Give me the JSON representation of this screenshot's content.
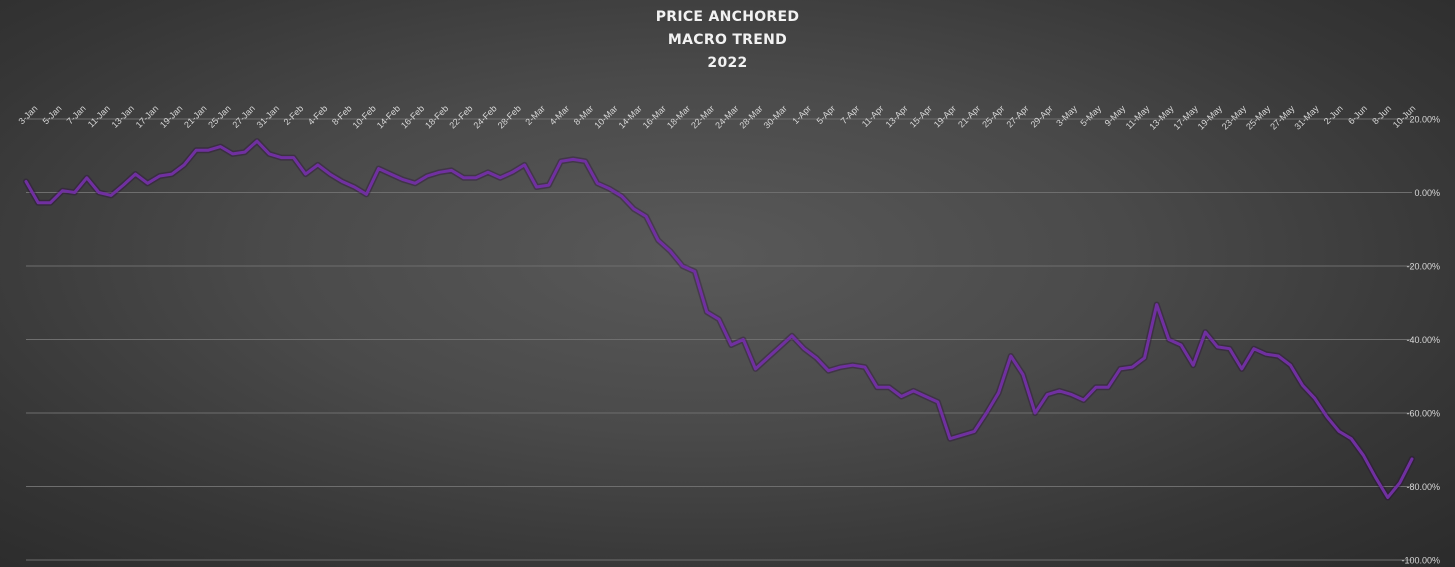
{
  "chart_data": {
    "type": "line",
    "title": [
      "PRICE ANCHORED",
      "MACRO TREND",
      "2022"
    ],
    "xlabel": "",
    "ylabel": "",
    "ylim": [
      -100,
      20
    ],
    "yticks": [
      20,
      0,
      -20,
      -40,
      -60,
      -80,
      -100
    ],
    "ytick_labels": [
      "20.00%",
      "0.00%",
      "-20.00%",
      "-40.00%",
      "-60.00%",
      "-80.00%",
      "-100.00%"
    ],
    "x_tick_labels": [
      "3-Jan",
      "5-Jan",
      "7-Jan",
      "11-Jan",
      "13-Jan",
      "17-Jan",
      "19-Jan",
      "21-Jan",
      "25-Jan",
      "27-Jan",
      "31-Jan",
      "2-Feb",
      "4-Feb",
      "8-Feb",
      "10-Feb",
      "14-Feb",
      "16-Feb",
      "18-Feb",
      "22-Feb",
      "24-Feb",
      "28-Feb",
      "2-Mar",
      "4-Mar",
      "8-Mar",
      "10-Mar",
      "14-Mar",
      "16-Mar",
      "18-Mar",
      "22-Mar",
      "24-Mar",
      "28-Mar",
      "30-Mar",
      "1-Apr",
      "5-Apr",
      "7-Apr",
      "11-Apr",
      "13-Apr",
      "15-Apr",
      "19-Apr",
      "21-Apr",
      "25-Apr",
      "27-Apr",
      "29-Apr",
      "3-May",
      "5-May",
      "9-May",
      "11-May",
      "13-May",
      "17-May",
      "19-May",
      "23-May",
      "25-May",
      "27-May",
      "31-May",
      "2-Jun",
      "6-Jun",
      "8-Jun",
      "10-Jun"
    ],
    "grid": true,
    "line_color": "#7030a0",
    "series": [
      {
        "values": [
          3.0,
          -2.8,
          -2.8,
          0.5,
          0.0,
          4.0,
          0.0,
          -0.8,
          2.0,
          5.0,
          2.5,
          4.5,
          5.0,
          7.5,
          11.5,
          11.5,
          12.5,
          10.5,
          11.0,
          14.0,
          10.5,
          9.5,
          9.5,
          5.0,
          7.5,
          5.0,
          3.0,
          1.5,
          -0.5,
          6.5,
          5.0,
          3.5,
          2.5,
          4.5,
          5.5,
          6.0,
          4.0,
          4.0,
          5.5,
          4.0,
          5.5,
          7.5,
          1.5,
          2.0,
          8.5,
          9.0,
          8.5,
          2.5,
          1.0,
          -1.0,
          -4.5,
          -6.5,
          -13.0,
          -16.0,
          -20.0,
          -21.5,
          -32.5,
          -34.5,
          -41.5,
          -40.0,
          -48.0,
          -45.0,
          -42.0,
          -39.0,
          -42.5,
          -45.0,
          -48.5,
          -47.5,
          -47.0,
          -47.5,
          -53.0,
          -53.0,
          -55.5,
          -54.0,
          -55.5,
          -57.0,
          -67.0,
          -66.0,
          -65.0,
          -60.0,
          -54.5,
          -44.5,
          -49.5,
          -60.0,
          -55.0,
          -54.0,
          -55.0,
          -56.5,
          -53.0,
          -53.0,
          -48.0,
          -47.5,
          -45.0,
          -30.5,
          -40.0,
          -41.5,
          -47.0,
          -38.0,
          -42.0,
          -42.5,
          -48.0,
          -42.5,
          -44.0,
          -44.5,
          -47.0,
          -52.5,
          -56.0,
          -61.0,
          -65.0,
          -67.0,
          -71.5,
          -77.5,
          -83.0,
          -79.0,
          -72.5
        ]
      }
    ]
  }
}
